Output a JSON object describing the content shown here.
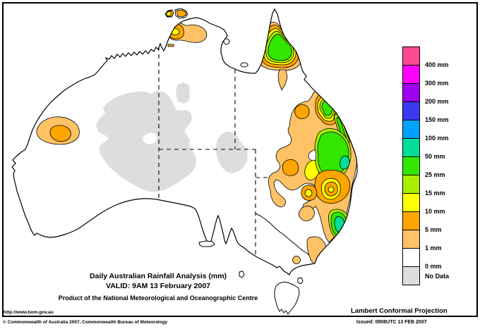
{
  "map": {
    "title_line1": "Daily Australian Rainfall Analysis (mm)",
    "title_line2": "VALID: 9AM 13 February 2007",
    "title_line3": "Product of the National Meteorological and Oceanographic Centre",
    "projection_label": "Lambert Conformal Projection",
    "url_label": "http://www.bom.gov.au"
  },
  "footer": {
    "copyright": "© Commonwealth of Australia 2007, Commonwealth Bureau of Meteorology",
    "issued": "Issued: 0908UTC 13 FEB 2007"
  },
  "legend": {
    "items": [
      {
        "label": "400 mm",
        "color": "#FF4990",
        "name": "above-400mm"
      },
      {
        "label": "300 mm",
        "color": "#FF00FF",
        "name": "300-400mm"
      },
      {
        "label": "200 mm",
        "color": "#9E00F0",
        "name": "200-300mm"
      },
      {
        "label": "150 mm",
        "color": "#3A3AF2",
        "name": "150-200mm"
      },
      {
        "label": "100 mm",
        "color": "#00A2FF",
        "name": "100-150mm"
      },
      {
        "label": "50 mm",
        "color": "#00DD99",
        "name": "50-100mm"
      },
      {
        "label": "25 mm",
        "color": "#33E600",
        "name": "25-50mm"
      },
      {
        "label": "15 mm",
        "color": "#AAEE00",
        "name": "15-25mm"
      },
      {
        "label": "10 mm",
        "color": "#FFFF00",
        "name": "10-15mm"
      },
      {
        "label": "5 mm",
        "color": "#FFA500",
        "name": "5-10mm"
      },
      {
        "label": "1 mm",
        "color": "#FFC266",
        "name": "1-5mm"
      },
      {
        "label": "0 mm",
        "color": "#FFFFFF",
        "name": "0-1mm"
      },
      {
        "label": "No Data",
        "color": "#DDDDDD",
        "name": "no-data"
      }
    ]
  }
}
